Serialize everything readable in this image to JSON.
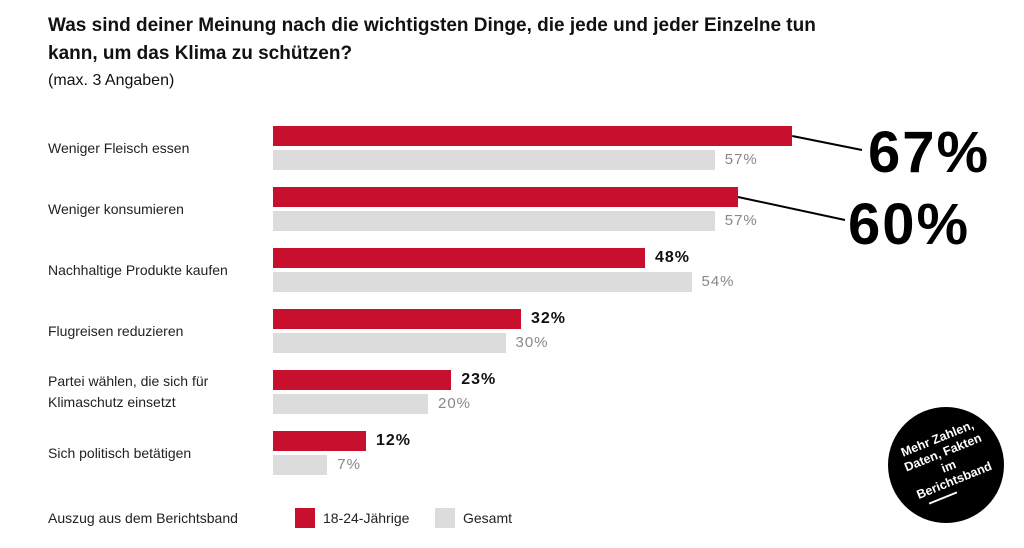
{
  "chart_data": {
    "type": "bar",
    "orientation": "horizontal",
    "title": "Was sind deiner Meinung nach die wichtigsten Dinge, die jede und jeder Einzelne tun kann, um das Klima zu schützen?",
    "subtitle": "(max. 3 Angaben)",
    "categories": [
      "Weniger Fleisch essen",
      "Weniger konsumieren",
      "Nachhaltige Produkte kaufen",
      "Flugreisen reduzieren",
      "Partei wählen, die sich für Klimaschutz einsetzt",
      "Sich politisch betätigen"
    ],
    "series": [
      {
        "name": "18-24-Jährige",
        "color": "#c8102e",
        "values": [
          67,
          60,
          48,
          32,
          23,
          12
        ],
        "value_labels": [
          "67%",
          "60%",
          "48%",
          "32%",
          "23%",
          "12%"
        ]
      },
      {
        "name": "Gesamt",
        "color": "#dcdcdc",
        "values": [
          57,
          57,
          54,
          30,
          20,
          7
        ],
        "value_labels": [
          "57%",
          "57%",
          "54%",
          "30%",
          "20%",
          "7%"
        ]
      }
    ],
    "legend_note": "Auszug aus dem Berichtsband",
    "badge": "Mehr Zahlen, Daten, Fakten im Berichtsband"
  }
}
